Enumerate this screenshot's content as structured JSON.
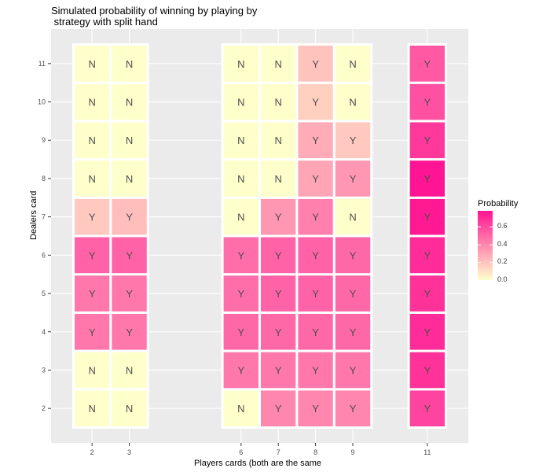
{
  "chart_data": {
    "type": "heatmap",
    "title": "Simulated probability of winning by playing by\n strategy with split hand",
    "xlabel": "Players cards (both are the same",
    "ylabel": "Dealers card",
    "x_ticks": [
      "2",
      "3",
      "6",
      "7",
      "8",
      "9",
      "11"
    ],
    "y_ticks": [
      "2",
      "3",
      "4",
      "5",
      "6",
      "7",
      "8",
      "9",
      "10",
      "11"
    ],
    "xlim": [
      0.9,
      12.1
    ],
    "ylim": [
      1.1,
      11.9
    ],
    "grid": true,
    "legend_title": "Probability",
    "legend_ticks": [
      "0.0",
      "0.2",
      "0.4",
      "0.6"
    ],
    "legend_range": [
      0,
      0.78
    ],
    "legend_position": "right",
    "colors": {
      "low": "#FFFFCC",
      "high": "#FF1493",
      "panel": "#EBEBEB",
      "text": "#4D4D4D"
    },
    "cells": [
      {
        "x": 2,
        "y": 2,
        "label": "N",
        "value": 0.0
      },
      {
        "x": 2,
        "y": 3,
        "label": "N",
        "value": 0.0
      },
      {
        "x": 2,
        "y": 4,
        "label": "Y",
        "value": 0.45
      },
      {
        "x": 2,
        "y": 5,
        "label": "Y",
        "value": 0.45
      },
      {
        "x": 2,
        "y": 6,
        "label": "Y",
        "value": 0.52
      },
      {
        "x": 2,
        "y": 7,
        "label": "Y",
        "value": 0.18
      },
      {
        "x": 2,
        "y": 8,
        "label": "N",
        "value": 0.0
      },
      {
        "x": 2,
        "y": 9,
        "label": "N",
        "value": 0.0
      },
      {
        "x": 2,
        "y": 10,
        "label": "N",
        "value": 0.0
      },
      {
        "x": 2,
        "y": 11,
        "label": "N",
        "value": 0.0
      },
      {
        "x": 3,
        "y": 2,
        "label": "N",
        "value": 0.0
      },
      {
        "x": 3,
        "y": 3,
        "label": "N",
        "value": 0.0
      },
      {
        "x": 3,
        "y": 4,
        "label": "Y",
        "value": 0.45
      },
      {
        "x": 3,
        "y": 5,
        "label": "Y",
        "value": 0.45
      },
      {
        "x": 3,
        "y": 6,
        "label": "Y",
        "value": 0.52
      },
      {
        "x": 3,
        "y": 7,
        "label": "Y",
        "value": 0.22
      },
      {
        "x": 3,
        "y": 8,
        "label": "N",
        "value": 0.0
      },
      {
        "x": 3,
        "y": 9,
        "label": "N",
        "value": 0.0
      },
      {
        "x": 3,
        "y": 10,
        "label": "N",
        "value": 0.0
      },
      {
        "x": 3,
        "y": 11,
        "label": "N",
        "value": 0.0
      },
      {
        "x": 6,
        "y": 2,
        "label": "N",
        "value": 0.0
      },
      {
        "x": 6,
        "y": 3,
        "label": "Y",
        "value": 0.45
      },
      {
        "x": 6,
        "y": 4,
        "label": "Y",
        "value": 0.5
      },
      {
        "x": 6,
        "y": 5,
        "label": "Y",
        "value": 0.48
      },
      {
        "x": 6,
        "y": 6,
        "label": "Y",
        "value": 0.48
      },
      {
        "x": 6,
        "y": 7,
        "label": "N",
        "value": 0.0
      },
      {
        "x": 6,
        "y": 8,
        "label": "N",
        "value": 0.0
      },
      {
        "x": 6,
        "y": 9,
        "label": "N",
        "value": 0.0
      },
      {
        "x": 6,
        "y": 10,
        "label": "N",
        "value": 0.0
      },
      {
        "x": 6,
        "y": 11,
        "label": "N",
        "value": 0.0
      },
      {
        "x": 7,
        "y": 2,
        "label": "Y",
        "value": 0.4
      },
      {
        "x": 7,
        "y": 3,
        "label": "Y",
        "value": 0.45
      },
      {
        "x": 7,
        "y": 4,
        "label": "Y",
        "value": 0.5
      },
      {
        "x": 7,
        "y": 5,
        "label": "Y",
        "value": 0.52
      },
      {
        "x": 7,
        "y": 6,
        "label": "Y",
        "value": 0.52
      },
      {
        "x": 7,
        "y": 7,
        "label": "Y",
        "value": 0.35
      },
      {
        "x": 7,
        "y": 8,
        "label": "N",
        "value": 0.0
      },
      {
        "x": 7,
        "y": 9,
        "label": "N",
        "value": 0.0
      },
      {
        "x": 7,
        "y": 10,
        "label": "N",
        "value": 0.0
      },
      {
        "x": 7,
        "y": 11,
        "label": "N",
        "value": 0.0
      },
      {
        "x": 8,
        "y": 2,
        "label": "Y",
        "value": 0.4
      },
      {
        "x": 8,
        "y": 3,
        "label": "Y",
        "value": 0.45
      },
      {
        "x": 8,
        "y": 4,
        "label": "Y",
        "value": 0.5
      },
      {
        "x": 8,
        "y": 5,
        "label": "Y",
        "value": 0.52
      },
      {
        "x": 8,
        "y": 6,
        "label": "Y",
        "value": 0.52
      },
      {
        "x": 8,
        "y": 7,
        "label": "Y",
        "value": 0.42
      },
      {
        "x": 8,
        "y": 8,
        "label": "Y",
        "value": 0.3
      },
      {
        "x": 8,
        "y": 9,
        "label": "Y",
        "value": 0.28
      },
      {
        "x": 8,
        "y": 10,
        "label": "Y",
        "value": 0.16
      },
      {
        "x": 8,
        "y": 11,
        "label": "Y",
        "value": 0.2
      },
      {
        "x": 9,
        "y": 2,
        "label": "Y",
        "value": 0.4
      },
      {
        "x": 9,
        "y": 3,
        "label": "Y",
        "value": 0.45
      },
      {
        "x": 9,
        "y": 4,
        "label": "Y",
        "value": 0.5
      },
      {
        "x": 9,
        "y": 5,
        "label": "Y",
        "value": 0.5
      },
      {
        "x": 9,
        "y": 6,
        "label": "Y",
        "value": 0.5
      },
      {
        "x": 9,
        "y": 7,
        "label": "N",
        "value": 0.0
      },
      {
        "x": 9,
        "y": 8,
        "label": "Y",
        "value": 0.35
      },
      {
        "x": 9,
        "y": 9,
        "label": "Y",
        "value": 0.18
      },
      {
        "x": 9,
        "y": 10,
        "label": "N",
        "value": 0.0
      },
      {
        "x": 9,
        "y": 11,
        "label": "N",
        "value": 0.0
      },
      {
        "x": 11,
        "y": 2,
        "label": "Y",
        "value": 0.62
      },
      {
        "x": 11,
        "y": 3,
        "label": "Y",
        "value": 0.68
      },
      {
        "x": 11,
        "y": 4,
        "label": "Y",
        "value": 0.7
      },
      {
        "x": 11,
        "y": 5,
        "label": "Y",
        "value": 0.68
      },
      {
        "x": 11,
        "y": 6,
        "label": "Y",
        "value": 0.7
      },
      {
        "x": 11,
        "y": 7,
        "label": "Y",
        "value": 0.76
      },
      {
        "x": 11,
        "y": 8,
        "label": "Y",
        "value": 0.78
      },
      {
        "x": 11,
        "y": 9,
        "label": "Y",
        "value": 0.66
      },
      {
        "x": 11,
        "y": 10,
        "label": "Y",
        "value": 0.58
      },
      {
        "x": 11,
        "y": 11,
        "label": "Y",
        "value": 0.55
      }
    ]
  }
}
